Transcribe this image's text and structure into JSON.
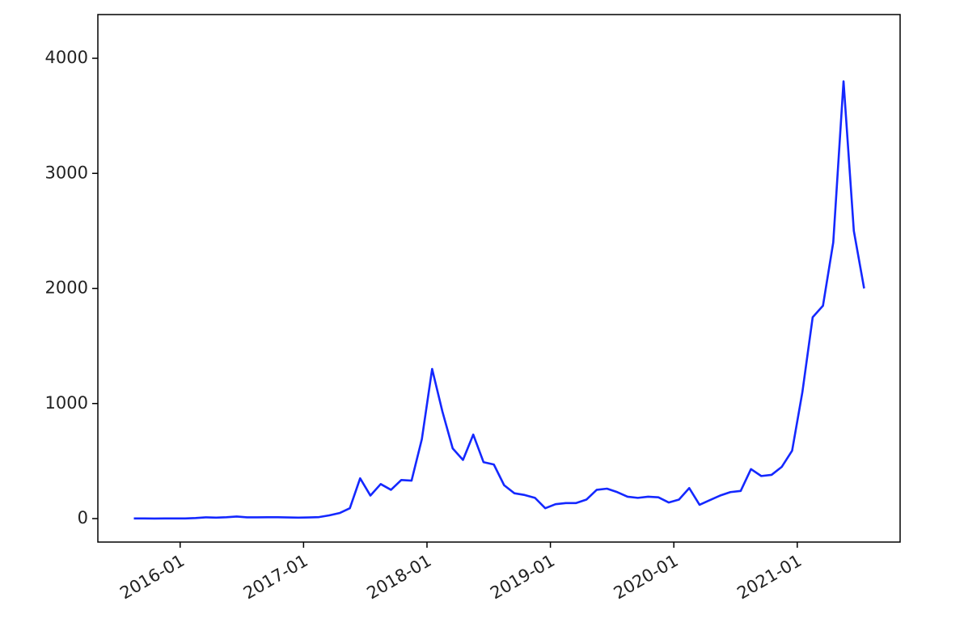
{
  "chart_data": {
    "type": "line",
    "x": [
      "2015-08",
      "2015-09",
      "2015-10",
      "2015-11",
      "2015-12",
      "2016-01",
      "2016-02",
      "2016-03",
      "2016-04",
      "2016-05",
      "2016-06",
      "2016-07",
      "2016-08",
      "2016-09",
      "2016-10",
      "2016-11",
      "2016-12",
      "2017-01",
      "2017-02",
      "2017-03",
      "2017-04",
      "2017-05",
      "2017-06",
      "2017-07",
      "2017-08",
      "2017-09",
      "2017-10",
      "2017-11",
      "2017-12",
      "2018-01",
      "2018-02",
      "2018-03",
      "2018-04",
      "2018-05",
      "2018-06",
      "2018-07",
      "2018-08",
      "2018-09",
      "2018-10",
      "2018-11",
      "2018-12",
      "2019-01",
      "2019-02",
      "2019-03",
      "2019-04",
      "2019-05",
      "2019-06",
      "2019-07",
      "2019-08",
      "2019-09",
      "2019-10",
      "2019-11",
      "2019-12",
      "2020-01",
      "2020-02",
      "2020-03",
      "2020-04",
      "2020-05",
      "2020-06",
      "2020-07",
      "2020-08",
      "2020-09",
      "2020-10",
      "2020-11",
      "2020-12",
      "2021-01",
      "2021-02",
      "2021-03",
      "2021-04",
      "2021-05",
      "2021-06",
      "2021-07"
    ],
    "values": [
      1.2,
      0.9,
      0.6,
      0.9,
      0.9,
      1.2,
      5,
      11,
      8,
      12,
      18,
      11,
      11,
      12,
      12,
      10,
      8,
      10,
      13,
      28,
      48,
      90,
      350,
      200,
      300,
      250,
      335,
      330,
      690,
      1300,
      930,
      610,
      510,
      730,
      490,
      470,
      290,
      220,
      205,
      180,
      90,
      125,
      135,
      135,
      165,
      250,
      260,
      230,
      190,
      180,
      190,
      185,
      140,
      165,
      265,
      120,
      160,
      200,
      230,
      240,
      430,
      370,
      380,
      450,
      590,
      1100,
      1750,
      1850,
      2400,
      3800,
      2500,
      2000
    ],
    "color": "#1428ff",
    "xlim": [
      "2015-05",
      "2021-11"
    ],
    "xticks": [
      "2016-01",
      "2017-01",
      "2018-01",
      "2019-01",
      "2020-01",
      "2021-01"
    ],
    "ylim": [
      -204,
      4380
    ],
    "yticks": [
      0,
      1000,
      2000,
      3000,
      4000
    ],
    "grid": false
  }
}
